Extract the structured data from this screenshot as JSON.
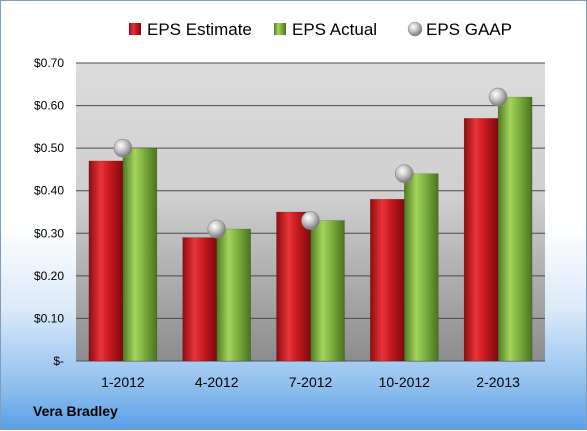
{
  "company": "Vera Bradley",
  "colors": {
    "estimate": "#c0171c",
    "actual": "#77a83a",
    "gaap": "#a8a8a8"
  },
  "chart_data": {
    "type": "bar",
    "categories": [
      "1-2012",
      "4-2012",
      "7-2012",
      "10-2012",
      "2-2013"
    ],
    "series": [
      {
        "name": "EPS Estimate",
        "values": [
          0.47,
          0.29,
          0.35,
          0.38,
          0.57
        ]
      },
      {
        "name": "EPS Actual",
        "values": [
          0.5,
          0.31,
          0.33,
          0.44,
          0.62
        ]
      },
      {
        "name": "EPS GAAP",
        "type": "scatter",
        "values": [
          0.5,
          0.31,
          0.33,
          0.44,
          0.62
        ]
      }
    ],
    "yticks": [
      "$-",
      "$0.10",
      "$0.20",
      "$0.30",
      "$0.40",
      "$0.50",
      "$0.60",
      "$0.70"
    ],
    "ylim": [
      0,
      0.7
    ],
    "grid": true,
    "legend": "top"
  }
}
